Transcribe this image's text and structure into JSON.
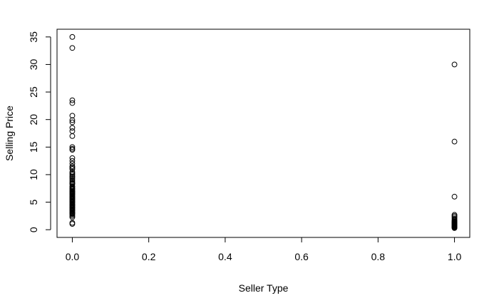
{
  "chart_data": {
    "type": "scatter",
    "title": "",
    "xlabel": "Seller Type",
    "ylabel": "Selling Price",
    "xlim": [
      -0.04,
      1.04
    ],
    "ylim": [
      -1.4,
      36.4
    ],
    "xticks": [
      0.0,
      0.2,
      0.4,
      0.6,
      0.8,
      1.0
    ],
    "xtick_labels": [
      "0.0",
      "0.2",
      "0.4",
      "0.6",
      "0.8",
      "1.0"
    ],
    "yticks": [
      0,
      5,
      10,
      15,
      20,
      25,
      30,
      35
    ],
    "ytick_labels": [
      "0",
      "5",
      "10",
      "15",
      "20",
      "25",
      "30",
      "35"
    ],
    "grid": false,
    "marker": "open-circle",
    "colors": {
      "marker": "#000000",
      "axis": "#000000",
      "background": "#ffffff"
    },
    "series": [
      {
        "x": [
          0,
          0,
          0,
          0,
          0,
          0,
          0,
          0,
          0,
          0,
          0,
          0,
          0,
          0,
          0,
          0,
          0,
          0,
          0,
          0,
          0,
          0,
          0,
          0,
          0,
          0,
          0,
          0,
          0,
          0,
          0,
          0,
          0,
          0,
          0,
          0,
          0,
          0,
          0,
          0,
          0,
          0,
          0,
          0,
          0,
          0,
          0,
          0,
          0,
          0,
          0,
          0,
          0,
          0,
          0,
          0,
          0,
          0,
          0,
          0,
          0,
          0,
          0,
          0,
          0,
          0,
          0,
          0,
          0,
          0,
          0,
          0,
          0,
          0,
          0,
          1,
          1,
          1,
          1,
          1,
          1,
          1,
          1,
          1,
          1,
          1,
          1,
          1,
          1,
          1,
          1,
          1,
          1,
          1,
          1,
          1,
          1,
          1,
          1,
          1,
          1
        ],
        "y": [
          35.0,
          33.0,
          23.5,
          23.0,
          20.7,
          19.9,
          19.5,
          18.5,
          17.9,
          17.0,
          15.0,
          14.7,
          14.5,
          13.0,
          12.5,
          12.0,
          11.5,
          11.25,
          11.0,
          10.5,
          10.25,
          10.0,
          9.7,
          9.5,
          9.25,
          9.0,
          8.75,
          8.5,
          8.4,
          8.25,
          7.9,
          7.75,
          7.5,
          7.4,
          7.25,
          7.05,
          6.95,
          6.85,
          6.75,
          6.6,
          6.5,
          6.4,
          6.25,
          6.1,
          6.0,
          5.85,
          5.75,
          5.6,
          5.5,
          5.4,
          5.25,
          5.1,
          5.0,
          4.9,
          4.75,
          4.6,
          4.5,
          4.4,
          4.25,
          4.1,
          4.0,
          3.9,
          3.75,
          3.6,
          3.5,
          3.4,
          3.25,
          3.1,
          3.0,
          2.9,
          2.75,
          2.5,
          2.25,
          1.25,
          1.05,
          30.0,
          16.0,
          6.0,
          2.7,
          2.5,
          2.25,
          2.0,
          1.75,
          1.65,
          1.5,
          1.45,
          1.35,
          1.25,
          1.2,
          1.15,
          1.05,
          1.0,
          0.9,
          0.8,
          0.75,
          0.65,
          0.6,
          0.5,
          0.45,
          0.35,
          0.3
        ]
      }
    ]
  }
}
